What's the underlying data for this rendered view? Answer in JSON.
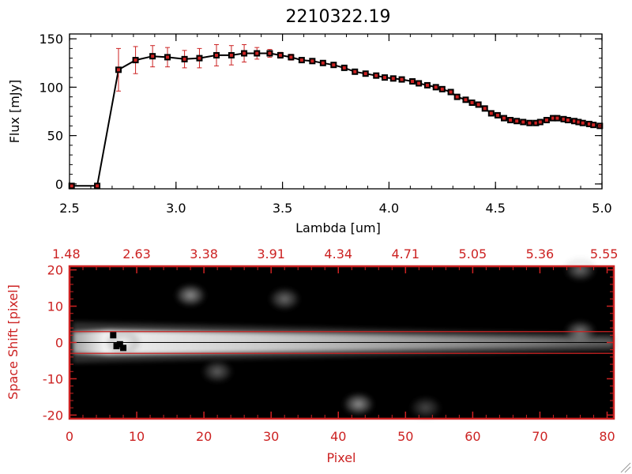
{
  "colors": {
    "spectrum_line": "#000000",
    "error_bar": "#cc2222",
    "marker": "#000000",
    "marker_inner": "#cc2222",
    "panel2_axis": "#cc2222",
    "image_background": "#000000",
    "extraction_line": "#cc2222"
  },
  "chart_data": [
    {
      "type": "line",
      "title": "2210322.19",
      "xlabel": "Lambda [um]",
      "ylabel": "Flux [mJy]",
      "xlim": [
        2.5,
        5.0
      ],
      "ylim": [
        -5,
        155
      ],
      "xticks": [
        2.5,
        3.0,
        3.5,
        4.0,
        4.5,
        5.0
      ],
      "xtick_labels": [
        "2.5",
        "3.0",
        "3.5",
        "4.0",
        "4.5",
        "5.0"
      ],
      "yticks": [
        0,
        50,
        100,
        150
      ],
      "ytick_labels": [
        "0",
        "50",
        "100",
        "150"
      ],
      "grid": false,
      "series": [
        {
          "x": [
            2.51,
            2.63,
            2.73,
            2.81,
            2.89,
            2.96,
            3.04,
            3.11,
            3.19,
            3.26,
            3.32,
            3.38,
            3.44,
            3.49,
            3.54,
            3.59,
            3.64,
            3.69,
            3.74,
            3.79,
            3.84,
            3.89,
            3.94,
            3.98,
            4.02,
            4.06,
            4.11,
            4.14,
            4.18,
            4.22,
            4.25,
            4.29,
            4.32,
            4.36,
            4.39,
            4.42,
            4.45,
            4.48,
            4.51,
            4.54,
            4.57,
            4.6,
            4.63,
            4.66,
            4.69,
            4.71,
            4.74,
            4.77,
            4.79,
            4.82,
            4.84,
            4.87,
            4.89,
            4.91,
            4.94,
            4.96,
            4.99
          ],
          "y": [
            -2,
            -2,
            118,
            128,
            132,
            131,
            129,
            130,
            133,
            133,
            135,
            135,
            135,
            133,
            131,
            128,
            127,
            125,
            123,
            120,
            116,
            114,
            112,
            110,
            109,
            108,
            106,
            104,
            102,
            100,
            98,
            95,
            90,
            87,
            84,
            82,
            78,
            73,
            71,
            68,
            66,
            65,
            64,
            63,
            63,
            64,
            66,
            68,
            68,
            67,
            66,
            65,
            64,
            63,
            62,
            61,
            60
          ],
          "yerr": [
            0,
            0,
            22,
            14,
            11,
            10,
            9,
            10,
            11,
            10,
            9,
            6,
            4,
            3,
            3,
            2,
            2,
            2,
            2,
            2,
            2,
            1,
            1,
            1,
            1,
            1,
            1,
            1,
            1,
            1,
            1,
            1,
            1,
            1,
            1,
            1,
            1,
            1,
            1,
            1,
            1,
            1,
            1,
            1,
            1,
            1,
            1,
            1,
            1,
            1,
            1,
            1,
            1,
            1,
            1,
            1,
            1
          ]
        }
      ]
    },
    {
      "type": "heatmap",
      "xlabel": "Pixel",
      "ylabel": "Space Shift [pixel]",
      "xlim": [
        0,
        81
      ],
      "ylim": [
        -21,
        21
      ],
      "xticks": [
        0,
        10,
        20,
        30,
        40,
        50,
        60,
        70,
        80
      ],
      "xtick_labels": [
        "0",
        "10",
        "20",
        "30",
        "40",
        "50",
        "60",
        "70",
        "80"
      ],
      "yticks": [
        -20,
        -10,
        0,
        10,
        20
      ],
      "ytick_labels": [
        "-20",
        "-10",
        "0",
        "10",
        "20"
      ],
      "top_axis_labels": [
        "1.48",
        "2.63",
        "3.38",
        "3.91",
        "4.34",
        "4.71",
        "5.05",
        "5.36",
        "5.55"
      ],
      "top_axis_positions": [
        0,
        10,
        20,
        30,
        40,
        50,
        60,
        70,
        80
      ],
      "extraction_window": [
        -3,
        3
      ],
      "trace_center": 0,
      "blobs": [
        {
          "x": 8,
          "y": 0,
          "peak": 1.0
        },
        {
          "x": 18,
          "y": 13,
          "peak": 0.6
        },
        {
          "x": 32,
          "y": 12,
          "peak": 0.45
        },
        {
          "x": 22,
          "y": -8,
          "peak": 0.4
        },
        {
          "x": 43,
          "y": -17,
          "peak": 0.6
        },
        {
          "x": 53,
          "y": -18,
          "peak": 0.3
        },
        {
          "x": 76,
          "y": 3,
          "peak": 0.5
        },
        {
          "x": 76,
          "y": 20,
          "peak": 0.45
        }
      ],
      "bad_pixels": [
        {
          "x": 6.5,
          "y": 2
        },
        {
          "x": 7.5,
          "y": -0.5
        },
        {
          "x": 7,
          "y": -1
        },
        {
          "x": 8,
          "y": -1.5
        }
      ]
    }
  ]
}
